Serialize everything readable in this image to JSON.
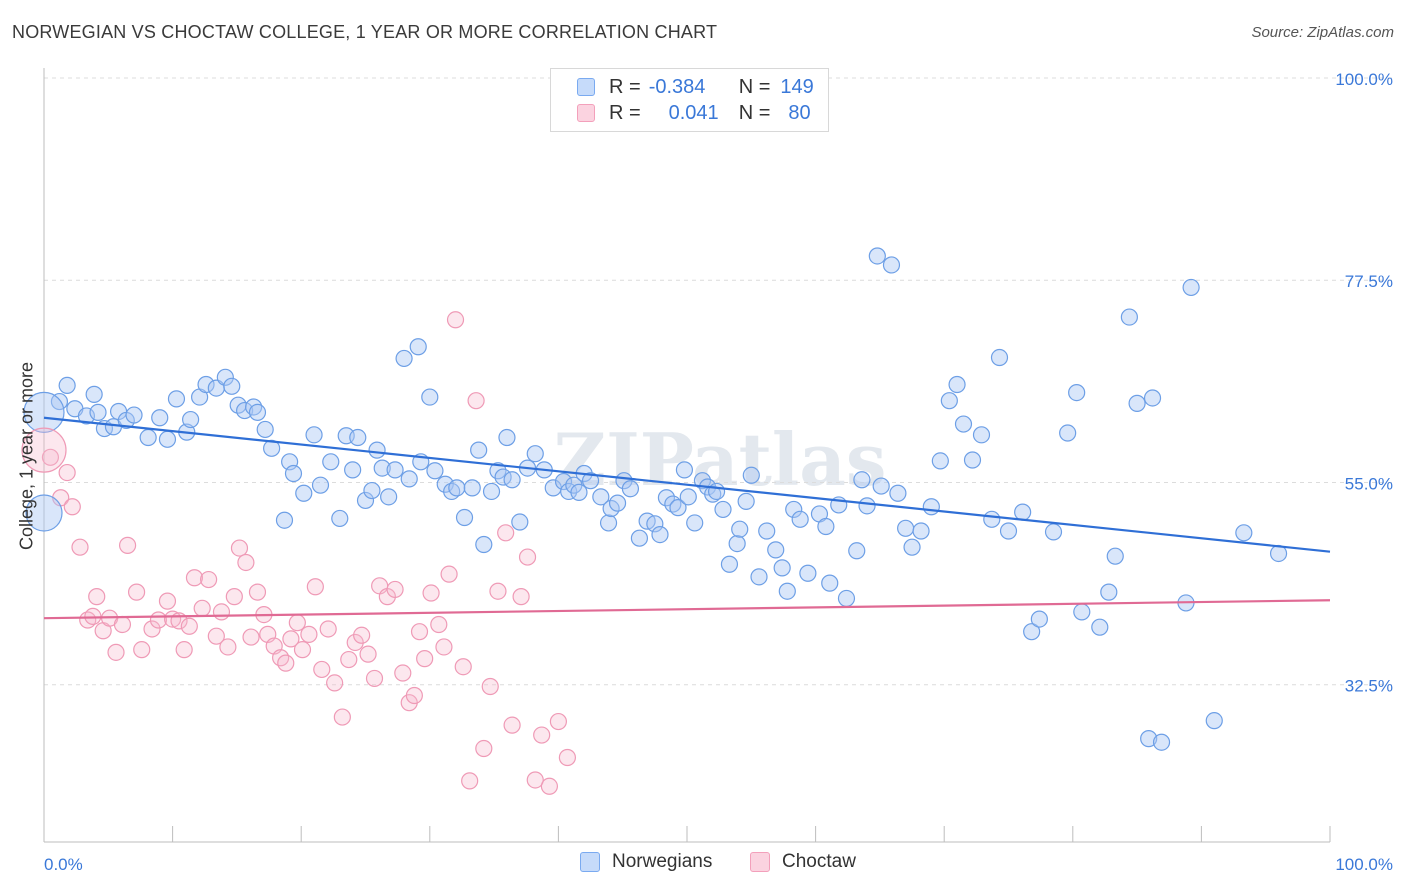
{
  "title": "NORWEGIAN VS CHOCTAW COLLEGE, 1 YEAR OR MORE CORRELATION CHART",
  "source": "Source: ZipAtlas.com",
  "watermark": "ZIPatlas",
  "legend": {
    "rows": [
      {
        "r_label": "R =",
        "r_value": "-0.384",
        "n_label": "N =",
        "n_value": "149",
        "color": "#7aaaf0"
      },
      {
        "r_label": "R =",
        "r_value": "0.041",
        "n_label": "N =",
        "n_value": "80",
        "color": "#f3a0bb"
      }
    ]
  },
  "chart_data": {
    "type": "scatter",
    "title": "NORWEGIAN VS CHOCTAW COLLEGE, 1 YEAR OR MORE CORRELATION CHART",
    "xlabel": "",
    "ylabel": "College, 1 year or more",
    "xlim": [
      0,
      100
    ],
    "ylim": [
      15,
      100
    ],
    "x_tick_labels": [
      "0.0%",
      "100.0%"
    ],
    "y_ticks": [
      100,
      77.5,
      55,
      32.5
    ],
    "y_tick_labels": [
      "100.0%",
      "77.5%",
      "55.0%",
      "32.5%"
    ],
    "grid": true,
    "legend_position": "top-center and bottom",
    "series": [
      {
        "name": "Norwegians",
        "color": "#7aaaf0",
        "line_color": "#2f6fd6",
        "trend": [
          [
            0,
            62.2
          ],
          [
            100,
            47.3
          ]
        ],
        "points": [
          [
            1.2,
            64.0
          ],
          [
            1.8,
            65.8
          ],
          [
            2.4,
            63.2
          ],
          [
            3.3,
            62.4
          ],
          [
            3.9,
            64.8
          ],
          [
            4.2,
            62.8
          ],
          [
            4.7,
            61.0
          ],
          [
            5.4,
            61.2
          ],
          [
            5.8,
            62.9
          ],
          [
            6.4,
            61.9
          ],
          [
            7.0,
            62.5
          ],
          [
            8.1,
            60.0
          ],
          [
            9.0,
            62.2
          ],
          [
            9.6,
            59.8
          ],
          [
            10.3,
            64.3
          ],
          [
            11.1,
            60.6
          ],
          [
            11.4,
            62.0
          ],
          [
            12.1,
            64.5
          ],
          [
            12.6,
            65.9
          ],
          [
            13.4,
            65.5
          ],
          [
            14.1,
            66.7
          ],
          [
            14.6,
            65.7
          ],
          [
            15.1,
            63.6
          ],
          [
            15.6,
            63.0
          ],
          [
            16.3,
            63.4
          ],
          [
            16.6,
            62.8
          ],
          [
            17.2,
            60.9
          ],
          [
            17.7,
            58.8
          ],
          [
            18.7,
            50.8
          ],
          [
            19.1,
            57.3
          ],
          [
            19.4,
            56.0
          ],
          [
            20.2,
            53.8
          ],
          [
            21.0,
            60.3
          ],
          [
            21.5,
            54.7
          ],
          [
            22.3,
            57.3
          ],
          [
            23.0,
            51.0
          ],
          [
            23.5,
            60.2
          ],
          [
            24.0,
            56.4
          ],
          [
            24.4,
            60.0
          ],
          [
            25.0,
            53.0
          ],
          [
            25.5,
            54.1
          ],
          [
            25.9,
            58.6
          ],
          [
            26.3,
            56.6
          ],
          [
            26.8,
            53.4
          ],
          [
            27.3,
            56.4
          ],
          [
            28.0,
            68.8
          ],
          [
            28.4,
            55.4
          ],
          [
            29.1,
            70.1
          ],
          [
            29.3,
            57.3
          ],
          [
            30.0,
            64.5
          ],
          [
            30.4,
            56.3
          ],
          [
            31.2,
            54.8
          ],
          [
            31.7,
            54.0
          ],
          [
            32.1,
            54.4
          ],
          [
            32.7,
            51.1
          ],
          [
            33.3,
            54.4
          ],
          [
            33.8,
            58.6
          ],
          [
            34.2,
            48.1
          ],
          [
            34.8,
            54.0
          ],
          [
            35.3,
            56.3
          ],
          [
            35.7,
            55.6
          ],
          [
            36.0,
            60.0
          ],
          [
            36.4,
            55.3
          ],
          [
            37.0,
            50.6
          ],
          [
            37.6,
            56.6
          ],
          [
            38.2,
            58.2
          ],
          [
            38.9,
            56.4
          ],
          [
            39.6,
            54.4
          ],
          [
            40.4,
            55.1
          ],
          [
            40.8,
            54.0
          ],
          [
            41.2,
            54.7
          ],
          [
            41.6,
            53.9
          ],
          [
            42.0,
            56.0
          ],
          [
            42.5,
            55.2
          ],
          [
            43.3,
            53.4
          ],
          [
            43.9,
            50.5
          ],
          [
            44.1,
            52.1
          ],
          [
            44.6,
            52.7
          ],
          [
            45.1,
            55.2
          ],
          [
            45.6,
            54.3
          ],
          [
            46.3,
            48.8
          ],
          [
            46.9,
            50.7
          ],
          [
            47.5,
            50.4
          ],
          [
            47.9,
            49.2
          ],
          [
            48.4,
            53.3
          ],
          [
            48.9,
            52.6
          ],
          [
            49.3,
            52.2
          ],
          [
            49.8,
            56.4
          ],
          [
            50.1,
            53.4
          ],
          [
            50.6,
            50.5
          ],
          [
            51.2,
            55.2
          ],
          [
            51.6,
            54.5
          ],
          [
            52.0,
            53.7
          ],
          [
            52.3,
            54.0
          ],
          [
            52.8,
            52.0
          ],
          [
            53.3,
            45.9
          ],
          [
            53.9,
            48.2
          ],
          [
            54.1,
            49.8
          ],
          [
            54.6,
            52.9
          ],
          [
            55.0,
            55.8
          ],
          [
            55.6,
            44.5
          ],
          [
            56.2,
            49.6
          ],
          [
            56.9,
            47.5
          ],
          [
            57.4,
            45.5
          ],
          [
            57.8,
            42.9
          ],
          [
            58.3,
            52.0
          ],
          [
            58.8,
            50.9
          ],
          [
            59.4,
            44.9
          ],
          [
            60.3,
            51.5
          ],
          [
            60.8,
            50.1
          ],
          [
            61.1,
            43.8
          ],
          [
            61.8,
            52.5
          ],
          [
            62.4,
            42.1
          ],
          [
            63.2,
            47.4
          ],
          [
            63.6,
            55.3
          ],
          [
            64.0,
            52.4
          ],
          [
            64.8,
            80.2
          ],
          [
            65.1,
            54.6
          ],
          [
            65.9,
            79.2
          ],
          [
            66.4,
            53.8
          ],
          [
            67.0,
            49.9
          ],
          [
            67.5,
            47.8
          ],
          [
            68.2,
            49.6
          ],
          [
            69.0,
            52.3
          ],
          [
            69.7,
            57.4
          ],
          [
            70.4,
            64.1
          ],
          [
            71.0,
            65.9
          ],
          [
            71.5,
            61.5
          ],
          [
            72.2,
            57.5
          ],
          [
            72.9,
            60.3
          ],
          [
            73.7,
            50.9
          ],
          [
            74.3,
            68.9
          ],
          [
            75.0,
            49.6
          ],
          [
            76.1,
            51.7
          ],
          [
            76.8,
            38.4
          ],
          [
            77.4,
            39.8
          ],
          [
            78.5,
            49.5
          ],
          [
            79.6,
            60.5
          ],
          [
            80.3,
            65.0
          ],
          [
            80.7,
            40.6
          ],
          [
            82.1,
            38.9
          ],
          [
            82.8,
            42.8
          ],
          [
            83.3,
            46.8
          ],
          [
            84.4,
            73.4
          ],
          [
            85.0,
            63.8
          ],
          [
            85.9,
            26.5
          ],
          [
            86.2,
            64.4
          ],
          [
            86.9,
            26.1
          ],
          [
            88.8,
            41.6
          ],
          [
            89.2,
            76.7
          ],
          [
            91.0,
            28.5
          ],
          [
            93.3,
            49.4
          ],
          [
            96.0,
            47.1
          ]
        ]
      },
      {
        "name": "Choctaw",
        "color": "#f3a0bb",
        "line_color": "#e06a94",
        "trend": [
          [
            0,
            39.9
          ],
          [
            100,
            41.9
          ]
        ],
        "points": [
          [
            0.5,
            57.8
          ],
          [
            1.3,
            53.3
          ],
          [
            1.8,
            56.1
          ],
          [
            2.2,
            52.3
          ],
          [
            2.8,
            47.8
          ],
          [
            3.4,
            39.7
          ],
          [
            3.8,
            40.1
          ],
          [
            4.1,
            42.3
          ],
          [
            4.6,
            38.5
          ],
          [
            5.1,
            39.9
          ],
          [
            5.6,
            36.1
          ],
          [
            6.1,
            39.2
          ],
          [
            6.5,
            48.0
          ],
          [
            7.2,
            42.8
          ],
          [
            7.6,
            36.4
          ],
          [
            8.4,
            38.7
          ],
          [
            8.9,
            39.7
          ],
          [
            9.6,
            41.8
          ],
          [
            10.0,
            39.8
          ],
          [
            10.5,
            39.6
          ],
          [
            10.9,
            36.4
          ],
          [
            11.3,
            39.0
          ],
          [
            11.7,
            44.4
          ],
          [
            12.3,
            41.0
          ],
          [
            12.8,
            44.2
          ],
          [
            13.4,
            37.9
          ],
          [
            13.8,
            40.6
          ],
          [
            14.3,
            36.7
          ],
          [
            14.8,
            42.3
          ],
          [
            15.2,
            47.7
          ],
          [
            15.7,
            46.1
          ],
          [
            16.1,
            37.8
          ],
          [
            16.6,
            42.8
          ],
          [
            17.1,
            40.3
          ],
          [
            17.4,
            38.1
          ],
          [
            17.9,
            36.8
          ],
          [
            18.4,
            35.5
          ],
          [
            18.8,
            34.9
          ],
          [
            19.2,
            37.6
          ],
          [
            19.7,
            39.4
          ],
          [
            20.1,
            36.4
          ],
          [
            20.6,
            38.1
          ],
          [
            21.1,
            43.4
          ],
          [
            21.6,
            34.2
          ],
          [
            22.1,
            38.7
          ],
          [
            22.6,
            32.7
          ],
          [
            23.2,
            28.9
          ],
          [
            23.7,
            35.3
          ],
          [
            24.2,
            37.2
          ],
          [
            24.7,
            38.0
          ],
          [
            25.2,
            35.9
          ],
          [
            25.7,
            33.2
          ],
          [
            26.1,
            43.5
          ],
          [
            26.7,
            42.3
          ],
          [
            27.3,
            43.1
          ],
          [
            27.9,
            33.8
          ],
          [
            28.4,
            30.5
          ],
          [
            28.8,
            31.3
          ],
          [
            29.2,
            38.4
          ],
          [
            29.6,
            35.4
          ],
          [
            30.1,
            42.7
          ],
          [
            30.7,
            39.2
          ],
          [
            31.1,
            36.7
          ],
          [
            31.5,
            44.8
          ],
          [
            32.0,
            73.1
          ],
          [
            32.6,
            34.5
          ],
          [
            33.1,
            21.8
          ],
          [
            33.6,
            64.1
          ],
          [
            34.2,
            25.4
          ],
          [
            34.7,
            32.3
          ],
          [
            35.3,
            42.9
          ],
          [
            35.9,
            49.4
          ],
          [
            36.4,
            28.0
          ],
          [
            37.1,
            42.3
          ],
          [
            37.6,
            46.7
          ],
          [
            38.2,
            21.9
          ],
          [
            38.7,
            26.9
          ],
          [
            39.3,
            21.2
          ],
          [
            40.0,
            28.4
          ],
          [
            40.7,
            24.4
          ]
        ]
      }
    ]
  },
  "bottom_legend": [
    {
      "label": "Norwegians",
      "color": "#7aaaf0"
    },
    {
      "label": "Choctaw",
      "color": "#f3a0bb"
    }
  ]
}
